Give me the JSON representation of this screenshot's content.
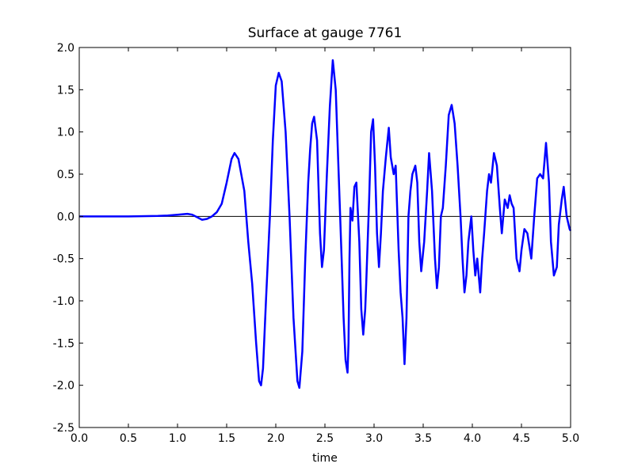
{
  "chart_data": {
    "type": "line",
    "title": "Surface at gauge 7761",
    "xlabel": "time",
    "x": [
      0,
      0.5,
      0.8,
      0.9,
      1.0,
      1.1,
      1.15,
      1.2,
      1.25,
      1.3,
      1.35,
      1.4,
      1.45,
      1.5,
      1.55,
      1.58,
      1.62,
      1.68,
      1.72,
      1.76,
      1.8,
      1.83,
      1.85,
      1.87,
      1.9,
      1.94,
      1.97,
      2.0,
      2.03,
      2.06,
      2.1,
      2.14,
      2.18,
      2.22,
      2.24,
      2.27,
      2.3,
      2.33,
      2.35,
      2.37,
      2.39,
      2.42,
      2.45,
      2.47,
      2.49,
      2.52,
      2.55,
      2.58,
      2.61,
      2.64,
      2.67,
      2.69,
      2.71,
      2.73,
      2.74,
      2.75,
      2.76,
      2.78,
      2.8,
      2.82,
      2.85,
      2.87,
      2.89,
      2.91,
      2.92,
      2.95,
      2.97,
      2.99,
      3.01,
      3.03,
      3.05,
      3.07,
      3.09,
      3.12,
      3.15,
      3.17,
      3.2,
      3.22,
      3.25,
      3.27,
      3.29,
      3.31,
      3.33,
      3.35,
      3.37,
      3.39,
      3.42,
      3.44,
      3.46,
      3.48,
      3.51,
      3.54,
      3.56,
      3.59,
      3.62,
      3.64,
      3.66,
      3.68,
      3.7,
      3.73,
      3.76,
      3.79,
      3.82,
      3.85,
      3.88,
      3.9,
      3.92,
      3.94,
      3.96,
      3.99,
      4.01,
      4.03,
      4.05,
      4.08,
      4.1,
      4.12,
      4.15,
      4.17,
      4.19,
      4.22,
      4.25,
      4.28,
      4.3,
      4.33,
      4.36,
      4.38,
      4.4,
      4.42,
      4.45,
      4.48,
      4.5,
      4.53,
      4.56,
      4.6,
      4.63,
      4.66,
      4.69,
      4.72,
      4.75,
      4.78,
      4.8,
      4.83,
      4.86,
      4.88,
      4.91,
      4.93,
      4.96,
      4.99,
      5.0
    ],
    "series": [
      {
        "color": "#0000ff",
        "values": [
          0,
          0,
          0.005,
          0.01,
          0.02,
          0.03,
          0.02,
          -0.01,
          -0.04,
          -0.03,
          0,
          0.05,
          0.15,
          0.4,
          0.68,
          0.75,
          0.68,
          0.3,
          -0.3,
          -0.8,
          -1.5,
          -1.95,
          -2.0,
          -1.8,
          -1.0,
          0,
          0.9,
          1.55,
          1.7,
          1.6,
          1.0,
          0,
          -1.2,
          -1.95,
          -2.03,
          -1.6,
          -0.5,
          0.4,
          0.8,
          1.1,
          1.18,
          0.9,
          -0.2,
          -0.6,
          -0.4,
          0.5,
          1.3,
          1.85,
          1.5,
          0.5,
          -0.5,
          -1.2,
          -1.7,
          -1.85,
          -1.5,
          -0.5,
          0.1,
          -0.05,
          0.35,
          0.4,
          -0.3,
          -1.1,
          -1.4,
          -1.1,
          -0.8,
          0.2,
          1.0,
          1.15,
          0.6,
          -0.2,
          -0.6,
          -0.2,
          0.3,
          0.7,
          1.05,
          0.7,
          0.5,
          0.6,
          -0.4,
          -0.9,
          -1.2,
          -1.75,
          -1.2,
          0,
          0.3,
          0.5,
          0.6,
          0.4,
          -0.3,
          -0.65,
          -0.3,
          0.3,
          0.75,
          0.3,
          -0.5,
          -0.85,
          -0.6,
          0,
          0.1,
          0.6,
          1.2,
          1.32,
          1.1,
          0.6,
          0,
          -0.5,
          -0.9,
          -0.7,
          -0.3,
          0,
          -0.4,
          -0.7,
          -0.5,
          -0.9,
          -0.5,
          -0.2,
          0.3,
          0.5,
          0.4,
          0.75,
          0.6,
          0.1,
          -0.2,
          0.2,
          0.1,
          0.25,
          0.15,
          0.1,
          -0.5,
          -0.65,
          -0.4,
          -0.15,
          -0.2,
          -0.5,
          0,
          0.45,
          0.5,
          0.45,
          0.87,
          0.4,
          -0.3,
          -0.7,
          -0.6,
          -0.1,
          0.2,
          0.35,
          0,
          -0.15,
          -0.17
        ]
      }
    ],
    "hlines": [
      0
    ],
    "xlim": [
      0,
      5
    ],
    "ylim": [
      -2.5,
      2
    ],
    "xticks": [
      {
        "value": 0,
        "label": "0.0"
      },
      0.5,
      {
        "value": 1,
        "label": "1.0"
      },
      1.5,
      {
        "value": 2,
        "label": "2.0"
      },
      2.5,
      {
        "value": 3,
        "label": "3.0"
      },
      3.5,
      {
        "value": 4,
        "label": "4.0"
      },
      4.5,
      {
        "value": 5,
        "label": "5.0"
      }
    ],
    "yticks": [
      -2.5,
      {
        "value": -2,
        "label": "-2.0"
      },
      -1.5,
      {
        "value": -1,
        "label": "-1.0"
      },
      -0.5,
      {
        "value": 0,
        "label": "0.0"
      },
      0.5,
      {
        "value": 1,
        "label": "1.0"
      },
      1.5,
      {
        "value": 2,
        "label": "2.0"
      }
    ]
  }
}
